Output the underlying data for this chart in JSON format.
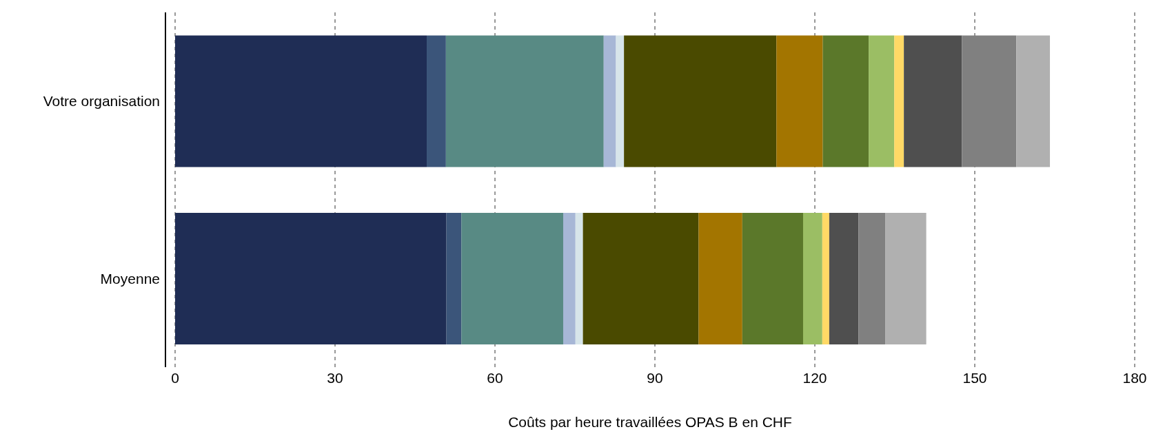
{
  "chart_data": {
    "type": "bar",
    "orientation": "horizontal",
    "stacked": true,
    "xlabel": "Coûts par heure travaillées OPAS B en CHF",
    "categories": [
      "Votre organisation",
      "Moyenne"
    ],
    "series": [
      {
        "color": "#1f2d55",
        "values": [
          47.2,
          50.9
        ]
      },
      {
        "color": "#3b557a",
        "values": [
          3.6,
          2.8
        ]
      },
      {
        "color": "#588a84",
        "values": [
          29.6,
          19.1
        ]
      },
      {
        "color": "#a7b7d6",
        "values": [
          2.3,
          2.3
        ]
      },
      {
        "color": "#d7e5ea",
        "values": [
          1.5,
          1.4
        ]
      },
      {
        "color": "#4a4a00",
        "values": [
          28.6,
          21.7
        ]
      },
      {
        "color": "#a37500",
        "values": [
          8.7,
          8.2
        ]
      },
      {
        "color": "#5b782a",
        "values": [
          8.6,
          11.4
        ]
      },
      {
        "color": "#9bbe64",
        "values": [
          4.8,
          3.6
        ]
      },
      {
        "color": "#ffd966",
        "values": [
          1.8,
          1.3
        ]
      },
      {
        "color": "#4f4f4f",
        "values": [
          10.9,
          5.5
        ]
      },
      {
        "color": "#808080",
        "values": [
          10.2,
          5.0
        ]
      },
      {
        "color": "#b0b0b0",
        "values": [
          6.3,
          7.7
        ]
      }
    ],
    "xlim": [
      0,
      180
    ],
    "xticks": [
      0,
      30,
      60,
      90,
      120,
      150,
      180
    ],
    "grid": "x",
    "legend": false
  }
}
